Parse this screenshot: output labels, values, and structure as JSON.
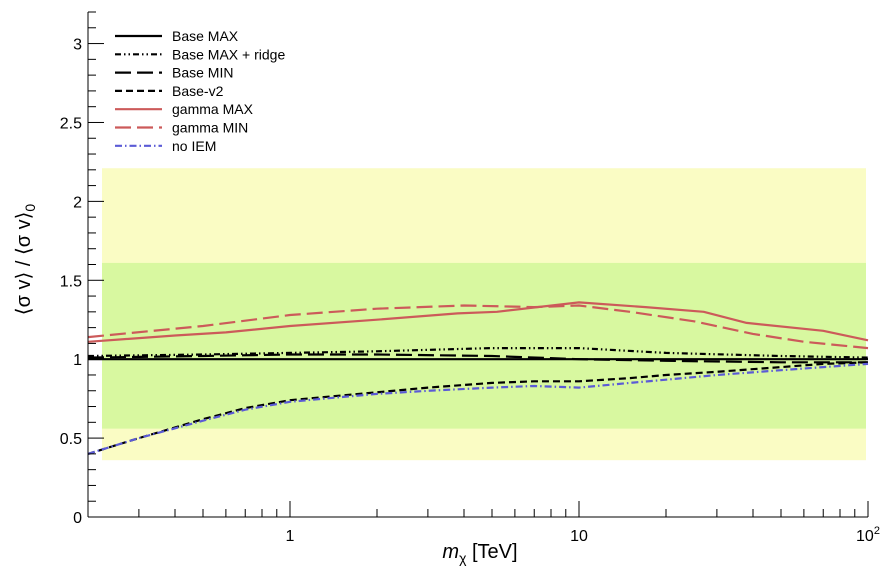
{
  "chart_data": {
    "type": "line",
    "title": "",
    "xlabel_main": "m",
    "xlabel_sub": "χ",
    "xlabel_unit": " [TeV]",
    "ylabel": "⟨σ v⟩ / ⟨σ v⟩",
    "ylabel_sub": "0",
    "x_scale": "log",
    "xlim": [
      0.2,
      100
    ],
    "ylim": [
      0,
      3.2
    ],
    "x_tick_labels": [
      {
        "v": 1,
        "t": "1"
      },
      {
        "v": 10,
        "t": "10"
      },
      {
        "v": 100,
        "t": "10",
        "sup": "2"
      }
    ],
    "y_tick_labels": [
      {
        "v": 0,
        "t": "0"
      },
      {
        "v": 0.5,
        "t": "0.5"
      },
      {
        "v": 1,
        "t": "1"
      },
      {
        "v": 1.5,
        "t": "1.5"
      },
      {
        "v": 2,
        "t": "2"
      },
      {
        "v": 2.5,
        "t": "2.5"
      },
      {
        "v": 3,
        "t": "3"
      }
    ],
    "bands": [
      {
        "lo": 0.36,
        "hi": 2.21,
        "color": "#fafcc4"
      },
      {
        "lo": 0.56,
        "hi": 1.61,
        "color": "#d8f8a0"
      }
    ],
    "legend_position": "top-left",
    "series": [
      {
        "name": "Base MAX",
        "color": "#000000",
        "dash": "solid",
        "x": [
          0.2,
          0.3,
          0.5,
          1,
          2,
          5,
          10,
          20,
          50,
          100
        ],
        "y": [
          1.0,
          1.0,
          1.0,
          1.0,
          1.0,
          1.0,
          1.0,
          1.0,
          1.0,
          1.0
        ]
      },
      {
        "name": "Base MAX + ridge",
        "color": "#000000",
        "dash": "dashdotdot",
        "x": [
          0.2,
          0.5,
          1,
          2,
          5,
          10,
          20,
          50,
          100
        ],
        "y": [
          1.02,
          1.03,
          1.04,
          1.05,
          1.07,
          1.07,
          1.04,
          1.02,
          1.01
        ]
      },
      {
        "name": "Base MIN",
        "color": "#000000",
        "dash": "longdash",
        "x": [
          0.2,
          0.5,
          1,
          2,
          5,
          10,
          20,
          50,
          100
        ],
        "y": [
          1.01,
          1.02,
          1.03,
          1.03,
          1.02,
          1.0,
          0.99,
          0.98,
          0.98
        ]
      },
      {
        "name": "Base-v2",
        "color": "#000000",
        "dash": "dash",
        "x": [
          0.2,
          0.3,
          0.5,
          0.7,
          1,
          1.5,
          2,
          3,
          5,
          7,
          10,
          15,
          20,
          30,
          50,
          70,
          100
        ],
        "y": [
          0.4,
          0.5,
          0.62,
          0.69,
          0.74,
          0.77,
          0.79,
          0.82,
          0.85,
          0.86,
          0.86,
          0.88,
          0.9,
          0.92,
          0.95,
          0.97,
          0.98
        ]
      },
      {
        "name": "gamma MAX",
        "color": "#cc5a5a",
        "dash": "solid",
        "x": [
          0.2,
          0.4,
          0.6,
          1,
          2,
          3.8,
          5.2,
          10,
          17,
          27,
          38,
          70,
          100
        ],
        "y": [
          1.11,
          1.15,
          1.17,
          1.21,
          1.25,
          1.29,
          1.3,
          1.36,
          1.33,
          1.3,
          1.23,
          1.18,
          1.12
        ]
      },
      {
        "name": "gamma MIN",
        "color": "#cc5a5a",
        "dash": "longdash",
        "x": [
          0.2,
          0.5,
          1,
          2,
          4,
          7,
          10,
          15,
          25,
          40,
          60,
          100
        ],
        "y": [
          1.14,
          1.21,
          1.28,
          1.32,
          1.34,
          1.33,
          1.34,
          1.3,
          1.24,
          1.16,
          1.11,
          1.07
        ]
      },
      {
        "name": "no IEM",
        "color": "#5b5bd6",
        "dash": "dashdot",
        "x": [
          0.2,
          0.3,
          0.5,
          0.7,
          1,
          1.5,
          2,
          3,
          5,
          7,
          10,
          15,
          20,
          30,
          50,
          70,
          100
        ],
        "y": [
          0.4,
          0.5,
          0.61,
          0.68,
          0.73,
          0.76,
          0.78,
          0.8,
          0.82,
          0.83,
          0.82,
          0.85,
          0.87,
          0.9,
          0.93,
          0.95,
          0.97
        ]
      }
    ]
  }
}
